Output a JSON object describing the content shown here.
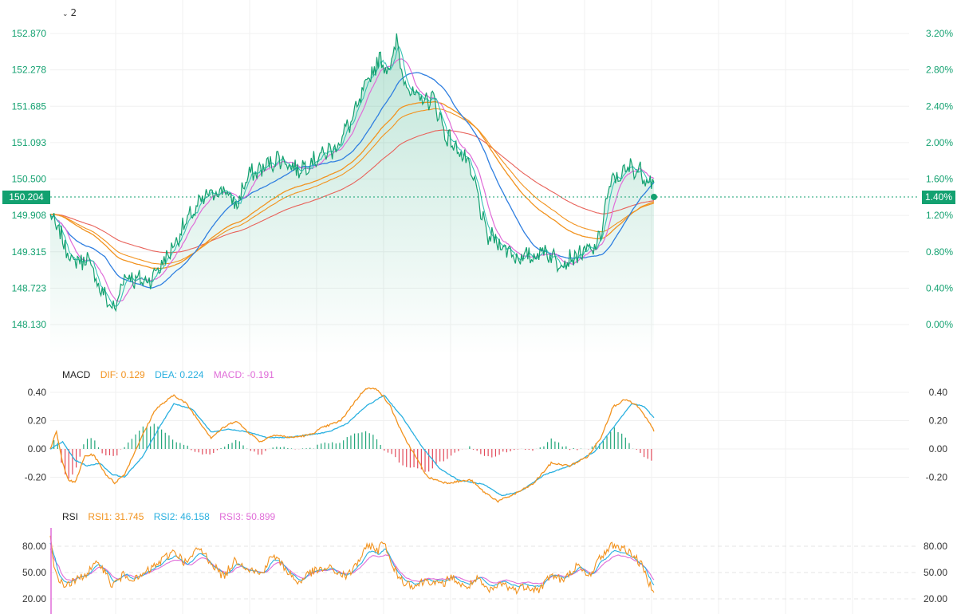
{
  "header": {
    "collapse_count": "2"
  },
  "icons": {
    "collapse": "chevron-down-icon"
  },
  "colors": {
    "price_line": "#13a170",
    "price_area": "#13a170",
    "ma_blue": "#2f7fe0",
    "ma_pink": "#e06cd8",
    "ma_teal": "#36c2b4",
    "ma_orange": "#f2931f",
    "ma_red": "#e8625a",
    "macd_dif": "#f2931f",
    "macd_dea": "#2ab0e0",
    "bar_up": "#22a67a",
    "bar_down": "#e24a5a",
    "rsi1": "#f2931f",
    "rsi2": "#2ab0e0",
    "rsi3": "#e06cd8",
    "axis_text_green": "#13a170",
    "axis_text_dark": "#333333"
  },
  "price_panel": {
    "current_price": "150.204",
    "current_pct": "1.40%"
  },
  "macd_legend": {
    "name": "MACD",
    "dif": "DIF: 0.129",
    "dea": "DEA: 0.224",
    "macd": "MACD: -0.191"
  },
  "rsi_legend": {
    "name": "RSI",
    "rsi1": "RSI1: 31.745",
    "rsi2": "RSI2: 46.158",
    "rsi3": "RSI3: 50.899"
  },
  "chart_data": [
    {
      "type": "area",
      "panel": "price",
      "y_ticks": [
        "152.870",
        "152.278",
        "151.685",
        "151.093",
        "150.500",
        "149.908",
        "149.315",
        "148.723",
        "148.130"
      ],
      "pct_ticks": [
        "3.20%",
        "2.80%",
        "2.40%",
        "2.00%",
        "1.60%",
        "1.20%",
        "0.80%",
        "0.40%",
        "0.00%"
      ],
      "ylim": [
        148.13,
        152.87
      ],
      "grid": true,
      "price_keyframes": [
        [
          0,
          149.9
        ],
        [
          8,
          149.6
        ],
        [
          18,
          149.15
        ],
        [
          30,
          149.2
        ],
        [
          42,
          148.65
        ],
        [
          52,
          148.35
        ],
        [
          60,
          148.95
        ],
        [
          70,
          148.85
        ],
        [
          80,
          148.85
        ],
        [
          95,
          149.25
        ],
        [
          110,
          149.8
        ],
        [
          125,
          150.2
        ],
        [
          140,
          150.35
        ],
        [
          150,
          150.05
        ],
        [
          160,
          150.55
        ],
        [
          170,
          150.65
        ],
        [
          185,
          150.85
        ],
        [
          200,
          150.65
        ],
        [
          215,
          150.85
        ],
        [
          230,
          151.0
        ],
        [
          245,
          151.5
        ],
        [
          255,
          152.0
        ],
        [
          265,
          152.45
        ],
        [
          275,
          152.3
        ],
        [
          280,
          152.75
        ],
        [
          285,
          152.2
        ],
        [
          295,
          151.8
        ],
        [
          310,
          151.8
        ],
        [
          320,
          151.2
        ],
        [
          335,
          150.85
        ],
        [
          345,
          150.3
        ],
        [
          352,
          149.6
        ],
        [
          360,
          149.5
        ],
        [
          370,
          149.35
        ],
        [
          380,
          149.2
        ],
        [
          390,
          149.25
        ],
        [
          400,
          149.35
        ],
        [
          410,
          149.15
        ],
        [
          420,
          149.2
        ],
        [
          430,
          149.3
        ],
        [
          440,
          149.35
        ],
        [
          445,
          149.6
        ],
        [
          450,
          150.2
        ],
        [
          455,
          150.5
        ],
        [
          460,
          150.55
        ],
        [
          470,
          150.7
        ],
        [
          478,
          150.6
        ],
        [
          485,
          150.48
        ],
        [
          488,
          150.44
        ]
      ],
      "series": [
        {
          "name": "",
          "color": "ma_teal",
          "period": 6
        },
        {
          "name": "",
          "color": "ma_pink",
          "period": 12
        },
        {
          "name": "",
          "color": "ma_blue",
          "period": 40
        },
        {
          "name": "",
          "color": "ma_orange",
          "kind": "cumulative"
        },
        {
          "name": "",
          "color": "ma_red",
          "kind": "cumulative_slow"
        }
      ]
    },
    {
      "type": "bar",
      "panel": "macd",
      "y_ticks": [
        "0.40",
        "0.20",
        "0.00",
        "-0.20"
      ],
      "ylim": [
        -0.39,
        0.45
      ],
      "series": [
        {
          "name": "DIF"
        },
        {
          "name": "DEA"
        },
        {
          "name": "MACD"
        }
      ],
      "dif_keyframes": [
        [
          0,
          0.0
        ],
        [
          5,
          0.12
        ],
        [
          10,
          -0.1
        ],
        [
          15,
          -0.22
        ],
        [
          20,
          -0.24
        ],
        [
          28,
          -0.05
        ],
        [
          35,
          -0.04
        ],
        [
          45,
          -0.18
        ],
        [
          52,
          -0.24
        ],
        [
          60,
          -0.18
        ],
        [
          72,
          0.05
        ],
        [
          85,
          0.28
        ],
        [
          100,
          0.38
        ],
        [
          110,
          0.32
        ],
        [
          120,
          0.2
        ],
        [
          130,
          0.08
        ],
        [
          140,
          0.15
        ],
        [
          150,
          0.2
        ],
        [
          160,
          0.12
        ],
        [
          170,
          0.05
        ],
        [
          180,
          0.1
        ],
        [
          195,
          0.08
        ],
        [
          210,
          0.1
        ],
        [
          220,
          0.15
        ],
        [
          235,
          0.2
        ],
        [
          245,
          0.32
        ],
        [
          255,
          0.43
        ],
        [
          265,
          0.42
        ],
        [
          275,
          0.3
        ],
        [
          285,
          0.1
        ],
        [
          295,
          -0.05
        ],
        [
          305,
          -0.2
        ],
        [
          320,
          -0.24
        ],
        [
          340,
          -0.22
        ],
        [
          350,
          -0.3
        ],
        [
          362,
          -0.37
        ],
        [
          375,
          -0.32
        ],
        [
          390,
          -0.25
        ],
        [
          405,
          -0.1
        ],
        [
          420,
          -0.12
        ],
        [
          435,
          -0.05
        ],
        [
          445,
          0.08
        ],
        [
          455,
          0.3
        ],
        [
          465,
          0.35
        ],
        [
          475,
          0.3
        ],
        [
          483,
          0.2
        ],
        [
          488,
          0.13
        ]
      ],
      "dea_keyframes": [
        [
          0,
          0.0
        ],
        [
          10,
          0.05
        ],
        [
          20,
          -0.08
        ],
        [
          30,
          -0.12
        ],
        [
          40,
          -0.1
        ],
        [
          50,
          -0.18
        ],
        [
          60,
          -0.2
        ],
        [
          75,
          -0.05
        ],
        [
          90,
          0.18
        ],
        [
          100,
          0.32
        ],
        [
          115,
          0.28
        ],
        [
          130,
          0.12
        ],
        [
          145,
          0.14
        ],
        [
          160,
          0.12
        ],
        [
          175,
          0.08
        ],
        [
          190,
          0.08
        ],
        [
          210,
          0.1
        ],
        [
          225,
          0.12
        ],
        [
          240,
          0.18
        ],
        [
          255,
          0.3
        ],
        [
          270,
          0.38
        ],
        [
          285,
          0.22
        ],
        [
          300,
          0.02
        ],
        [
          315,
          -0.14
        ],
        [
          330,
          -0.22
        ],
        [
          350,
          -0.25
        ],
        [
          365,
          -0.33
        ],
        [
          380,
          -0.3
        ],
        [
          400,
          -0.18
        ],
        [
          420,
          -0.12
        ],
        [
          440,
          -0.02
        ],
        [
          455,
          0.15
        ],
        [
          470,
          0.32
        ],
        [
          480,
          0.3
        ],
        [
          488,
          0.22
        ]
      ]
    },
    {
      "type": "line",
      "panel": "rsi",
      "y_ticks": [
        "80.00",
        "50.00",
        "20.00"
      ],
      "ylim": [
        14,
        95
      ],
      "series": [
        {
          "name": "RSI1"
        },
        {
          "name": "RSI2"
        },
        {
          "name": "RSI3"
        }
      ],
      "rsi_keyframes": [
        [
          0,
          90
        ],
        [
          3,
          55
        ],
        [
          10,
          35
        ],
        [
          20,
          40
        ],
        [
          30,
          50
        ],
        [
          40,
          62
        ],
        [
          50,
          35
        ],
        [
          60,
          48
        ],
        [
          70,
          42
        ],
        [
          85,
          58
        ],
        [
          100,
          75
        ],
        [
          110,
          60
        ],
        [
          120,
          78
        ],
        [
          130,
          62
        ],
        [
          140,
          45
        ],
        [
          150,
          65
        ],
        [
          160,
          55
        ],
        [
          170,
          48
        ],
        [
          180,
          70
        ],
        [
          190,
          55
        ],
        [
          200,
          38
        ],
        [
          210,
          50
        ],
        [
          225,
          55
        ],
        [
          240,
          45
        ],
        [
          250,
          65
        ],
        [
          258,
          82
        ],
        [
          265,
          75
        ],
        [
          270,
          88
        ],
        [
          275,
          60
        ],
        [
          285,
          40
        ],
        [
          295,
          35
        ],
        [
          305,
          42
        ],
        [
          315,
          35
        ],
        [
          325,
          45
        ],
        [
          335,
          32
        ],
        [
          345,
          42
        ],
        [
          355,
          28
        ],
        [
          365,
          38
        ],
        [
          375,
          30
        ],
        [
          385,
          35
        ],
        [
          395,
          30
        ],
        [
          405,
          48
        ],
        [
          415,
          40
        ],
        [
          425,
          58
        ],
        [
          435,
          45
        ],
        [
          445,
          68
        ],
        [
          455,
          82
        ],
        [
          462,
          78
        ],
        [
          470,
          72
        ],
        [
          478,
          58
        ],
        [
          485,
          36
        ],
        [
          488,
          32
        ]
      ]
    }
  ]
}
